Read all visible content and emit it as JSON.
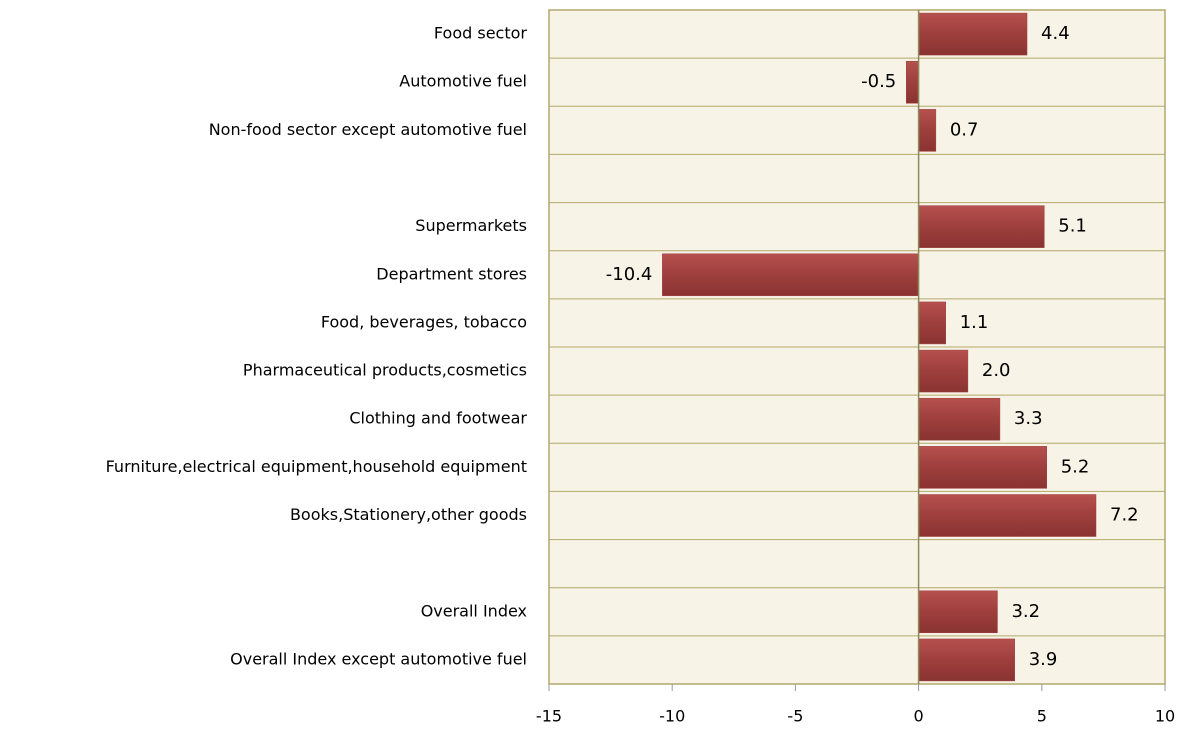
{
  "chart_data": {
    "type": "barh",
    "categories": [
      "Food sector",
      "Automotive fuel",
      "Non-food sector except automotive fuel",
      null,
      "Supermarkets",
      "Department stores",
      "Food, beverages, tobacco",
      "Pharmaceutical products,cosmetics",
      "Clothing and footwear",
      "Furniture,electrical equipment,household equipment",
      "Books,Stationery,other goods",
      null,
      "Overall Index",
      "Overall Index except automotive fuel"
    ],
    "values": [
      4.4,
      -0.5,
      0.7,
      null,
      5.1,
      -10.4,
      1.1,
      2.0,
      3.3,
      5.2,
      7.2,
      null,
      3.2,
      3.9
    ],
    "value_labels": [
      "4.4",
      "-0.5",
      "0.7",
      null,
      "5.1",
      "-10.4",
      "1.1",
      "2.0",
      "3.3",
      "5.2",
      "7.2",
      null,
      "3.2",
      "3.9"
    ],
    "color": "#9e3f3d",
    "xlim": [
      -15,
      10
    ],
    "xticks": [
      -15,
      -10,
      -5,
      0,
      5,
      10
    ]
  }
}
